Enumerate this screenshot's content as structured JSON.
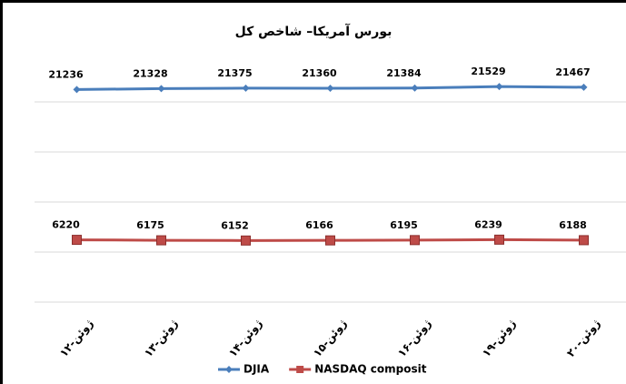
{
  "chart_data": {
    "type": "line",
    "title": "بورس آمریکا– شاخص کل",
    "categories": [
      "۱۲-ژوئن",
      "۱۳-ژوئن",
      "۱۴-ژوئن",
      "۱۵-ژوئن",
      "۱۶-ژوئن",
      "۱۹-ژوئن",
      "۲۰-ژوئن"
    ],
    "series": [
      {
        "name": "DJIA",
        "color": "#4a7ebb",
        "marker": "diamond",
        "values": [
          21236,
          21328,
          21375,
          21360,
          21384,
          21529,
          21467
        ]
      },
      {
        "name": "NASDAQ composit",
        "color": "#be4b48",
        "marker": "square",
        "values": [
          6220,
          6175,
          6152,
          6166,
          6195,
          6239,
          6188
        ]
      }
    ],
    "ylim": [
      0,
      25000
    ],
    "yticks": [
      0,
      5000,
      10000,
      15000,
      20000
    ],
    "grid": true,
    "legend": "bottom"
  }
}
